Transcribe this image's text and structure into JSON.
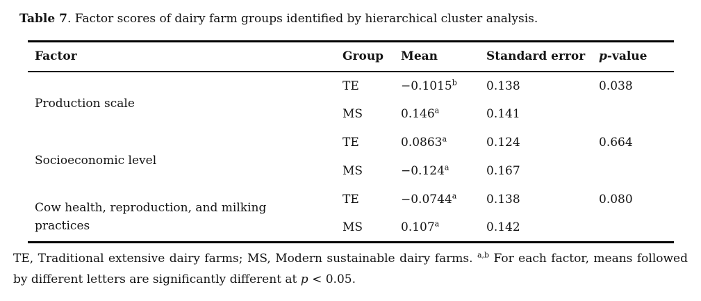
{
  "page": {
    "background": "#ffffff",
    "text_color": "#141414",
    "rule_color": "#000000"
  },
  "title": {
    "label_bold": "Table 7",
    "rest": ". Factor scores of dairy farm groups identified by hierarchical cluster analysis."
  },
  "table": {
    "headers": {
      "factor": "Factor",
      "group": "Group",
      "mean": "Mean",
      "standard_error": "Standard error",
      "p_value_italic": "p",
      "p_value_rest": "-value"
    },
    "rows": [
      {
        "factor": "Production scale",
        "group": "TE",
        "mean": "−0.1015",
        "mean_sup": "b",
        "standard_error": "0.138",
        "p_value": "0.038"
      },
      {
        "group": "MS",
        "mean": "0.146",
        "mean_sup": "a",
        "standard_error": "0.141",
        "p_value": ""
      },
      {
        "factor": "Socioeconomic level",
        "group": "TE",
        "mean": "0.0863",
        "mean_sup": "a",
        "standard_error": "0.124",
        "p_value": "0.664"
      },
      {
        "group": "MS",
        "mean": "−0.124",
        "mean_sup": "a",
        "standard_error": "0.167",
        "p_value": ""
      },
      {
        "factor": "Cow health, reproduction, and milking practices",
        "group": "TE",
        "mean": "−0.0744",
        "mean_sup": "a",
        "standard_error": "0.138",
        "p_value": "0.080"
      },
      {
        "group": "MS",
        "mean": "0.107",
        "mean_sup": "a",
        "standard_error": "0.142",
        "p_value": ""
      }
    ]
  },
  "footnote": {
    "part1": "TE, Traditional extensive dairy farms; MS, Modern sustainable dairy farms. ",
    "sup": "a,b",
    "part2": " For each factor, means followed by different letters are significantly different at ",
    "p_italic": "p",
    "part3": " < 0.05."
  }
}
